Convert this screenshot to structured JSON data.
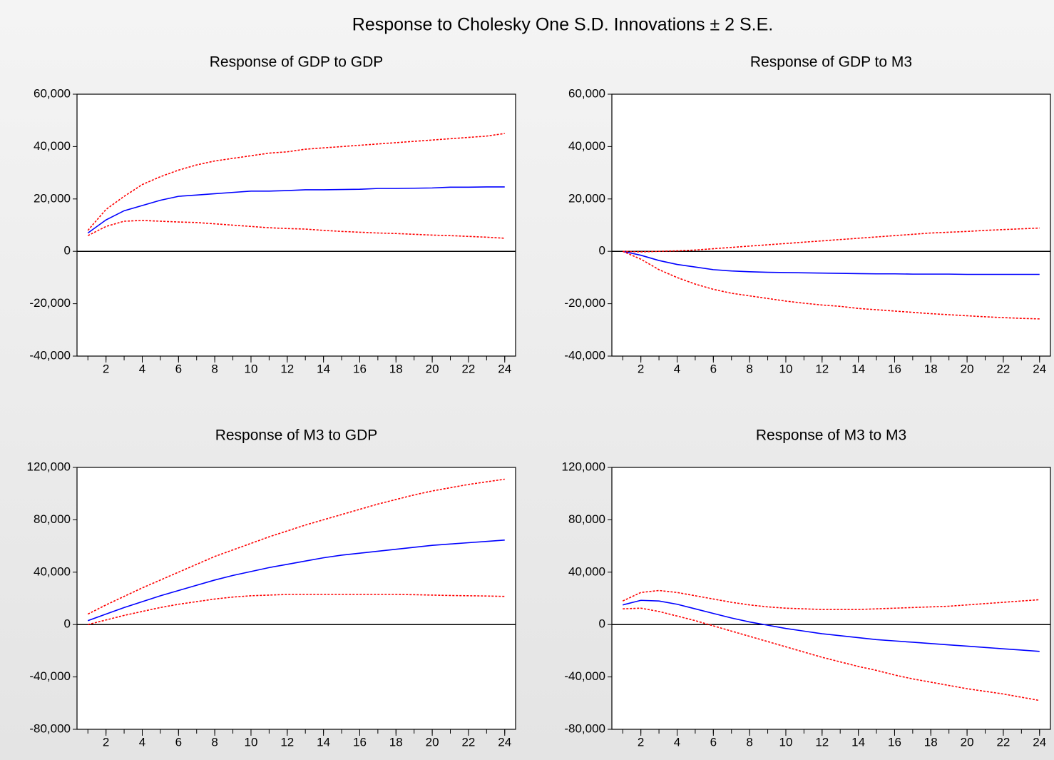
{
  "title": "Response to Cholesky One S.D. Innovations ± 2 S.E.",
  "chart_data": [
    {
      "type": "line",
      "title": "Response of GDP to GDP",
      "x": [
        1,
        2,
        3,
        4,
        5,
        6,
        7,
        8,
        9,
        10,
        11,
        12,
        13,
        14,
        15,
        16,
        17,
        18,
        19,
        20,
        21,
        22,
        23,
        24
      ],
      "xlim": [
        0.4,
        24.6
      ],
      "xticks": [
        2,
        4,
        6,
        8,
        10,
        12,
        14,
        16,
        18,
        20,
        22,
        24
      ],
      "ylim": [
        -40000,
        60000
      ],
      "yticks": [
        {
          "value": -40000,
          "label": "-40,000"
        },
        {
          "value": -20000,
          "label": "-20,000"
        },
        0,
        {
          "value": 20000,
          "label": "20,000"
        },
        {
          "value": 40000,
          "label": "40,000"
        },
        {
          "value": 60000,
          "label": "60,000"
        }
      ],
      "series": [
        {
          "color": "#0000ff",
          "style": "solid",
          "values": [
            7000,
            12000,
            15500,
            17500,
            19500,
            21000,
            21500,
            22000,
            22500,
            23000,
            23000,
            23200,
            23500,
            23500,
            23600,
            23700,
            24000,
            24000,
            24100,
            24200,
            24500,
            24500,
            24600,
            24600
          ]
        },
        {
          "color": "#ff0000",
          "style": "dotted",
          "values": [
            8000,
            16000,
            21000,
            25500,
            28500,
            31000,
            33000,
            34500,
            35500,
            36500,
            37500,
            38000,
            39000,
            39500,
            40000,
            40500,
            41000,
            41500,
            42000,
            42500,
            43000,
            43500,
            44000,
            45000
          ]
        },
        {
          "color": "#ff0000",
          "style": "dotted",
          "values": [
            6000,
            9500,
            11500,
            11800,
            11500,
            11200,
            11000,
            10500,
            10000,
            9500,
            9000,
            8700,
            8500,
            8000,
            7600,
            7300,
            7000,
            6800,
            6500,
            6200,
            6000,
            5700,
            5400,
            5000
          ]
        }
      ]
    },
    {
      "type": "line",
      "title": "Response of GDP to M3",
      "x": [
        1,
        2,
        3,
        4,
        5,
        6,
        7,
        8,
        9,
        10,
        11,
        12,
        13,
        14,
        15,
        16,
        17,
        18,
        19,
        20,
        21,
        22,
        23,
        24
      ],
      "xlim": [
        0.4,
        24.6
      ],
      "xticks": [
        2,
        4,
        6,
        8,
        10,
        12,
        14,
        16,
        18,
        20,
        22,
        24
      ],
      "ylim": [
        -40000,
        60000
      ],
      "yticks": [
        {
          "value": -40000,
          "label": "-40,000"
        },
        {
          "value": -20000,
          "label": "-20,000"
        },
        0,
        {
          "value": 20000,
          "label": "20,000"
        },
        {
          "value": 40000,
          "label": "40,000"
        },
        {
          "value": 60000,
          "label": "60,000"
        }
      ],
      "series": [
        {
          "color": "#0000ff",
          "style": "solid",
          "values": [
            0,
            -1500,
            -3500,
            -5000,
            -6000,
            -7000,
            -7500,
            -7800,
            -8000,
            -8100,
            -8200,
            -8300,
            -8400,
            -8500,
            -8600,
            -8600,
            -8700,
            -8700,
            -8700,
            -8800,
            -8800,
            -8800,
            -8800,
            -8800
          ]
        },
        {
          "color": "#ff0000",
          "style": "dotted",
          "values": [
            0,
            -200,
            0,
            200,
            500,
            1000,
            1500,
            2000,
            2500,
            3000,
            3500,
            4000,
            4500,
            5000,
            5500,
            6000,
            6500,
            7000,
            7300,
            7600,
            8000,
            8300,
            8600,
            8900
          ]
        },
        {
          "color": "#ff0000",
          "style": "dotted",
          "values": [
            0,
            -3000,
            -7000,
            -10000,
            -12500,
            -14500,
            -16000,
            -17000,
            -18000,
            -19000,
            -19800,
            -20500,
            -21000,
            -21800,
            -22300,
            -22800,
            -23300,
            -23800,
            -24200,
            -24600,
            -25000,
            -25300,
            -25600,
            -25800
          ]
        }
      ]
    },
    {
      "type": "line",
      "title": "Response of M3 to GDP",
      "x": [
        1,
        2,
        3,
        4,
        5,
        6,
        7,
        8,
        9,
        10,
        11,
        12,
        13,
        14,
        15,
        16,
        17,
        18,
        19,
        20,
        21,
        22,
        23,
        24
      ],
      "xlim": [
        0.4,
        24.6
      ],
      "xticks": [
        2,
        4,
        6,
        8,
        10,
        12,
        14,
        16,
        18,
        20,
        22,
        24
      ],
      "ylim": [
        -80000,
        120000
      ],
      "yticks": [
        {
          "value": -80000,
          "label": "-80,000"
        },
        {
          "value": -40000,
          "label": "-40,000"
        },
        0,
        {
          "value": 40000,
          "label": "40,000"
        },
        {
          "value": 80000,
          "label": "80,000"
        },
        {
          "value": 120000,
          "label": "120,000"
        }
      ],
      "series": [
        {
          "color": "#0000ff",
          "style": "solid",
          "values": [
            3000,
            8000,
            13000,
            17500,
            22000,
            26000,
            30000,
            34000,
            37500,
            40500,
            43500,
            46000,
            48500,
            51000,
            53000,
            54500,
            56000,
            57500,
            59000,
            60500,
            61500,
            62500,
            63500,
            64500
          ]
        },
        {
          "color": "#ff0000",
          "style": "dotted",
          "values": [
            8000,
            15000,
            21500,
            28000,
            34000,
            40000,
            46000,
            52000,
            57000,
            62000,
            67000,
            71500,
            76000,
            80000,
            84000,
            88000,
            92000,
            95500,
            99000,
            102000,
            104500,
            107000,
            109000,
            111000
          ]
        },
        {
          "color": "#ff0000",
          "style": "dotted",
          "values": [
            0,
            3500,
            7000,
            10000,
            13000,
            15500,
            17500,
            19500,
            21000,
            22000,
            22500,
            23000,
            23000,
            23000,
            23000,
            23000,
            23000,
            23000,
            22800,
            22500,
            22200,
            22000,
            21800,
            21500
          ]
        }
      ]
    },
    {
      "type": "line",
      "title": "Response of M3 to M3",
      "x": [
        1,
        2,
        3,
        4,
        5,
        6,
        7,
        8,
        9,
        10,
        11,
        12,
        13,
        14,
        15,
        16,
        17,
        18,
        19,
        20,
        21,
        22,
        23,
        24
      ],
      "xlim": [
        0.4,
        24.6
      ],
      "xticks": [
        2,
        4,
        6,
        8,
        10,
        12,
        14,
        16,
        18,
        20,
        22,
        24
      ],
      "ylim": [
        -80000,
        120000
      ],
      "yticks": [
        {
          "value": -80000,
          "label": "-80,000"
        },
        {
          "value": -40000,
          "label": "-40,000"
        },
        0,
        {
          "value": 40000,
          "label": "40,000"
        },
        {
          "value": 80000,
          "label": "80,000"
        },
        {
          "value": 120000,
          "label": "120,000"
        }
      ],
      "series": [
        {
          "color": "#0000ff",
          "style": "solid",
          "values": [
            15000,
            18500,
            18000,
            15500,
            12000,
            8500,
            5000,
            2000,
            -500,
            -3000,
            -5000,
            -7000,
            -8500,
            -10000,
            -11500,
            -12500,
            -13500,
            -14500,
            -15500,
            -16500,
            -17500,
            -18500,
            -19500,
            -20500
          ]
        },
        {
          "color": "#ff0000",
          "style": "dotted",
          "values": [
            18000,
            24500,
            26000,
            24500,
            22000,
            19500,
            17000,
            15000,
            13500,
            12500,
            12000,
            11500,
            11500,
            11500,
            12000,
            12500,
            13000,
            13500,
            14000,
            15000,
            16000,
            17000,
            18000,
            19000
          ]
        },
        {
          "color": "#ff0000",
          "style": "dotted",
          "values": [
            12000,
            12500,
            10000,
            6500,
            3000,
            -1000,
            -5000,
            -9000,
            -13000,
            -17000,
            -21000,
            -25000,
            -28500,
            -32000,
            -35000,
            -38500,
            -41500,
            -44000,
            -46500,
            -49000,
            -51000,
            -53000,
            -55500,
            -58000
          ]
        }
      ]
    }
  ]
}
